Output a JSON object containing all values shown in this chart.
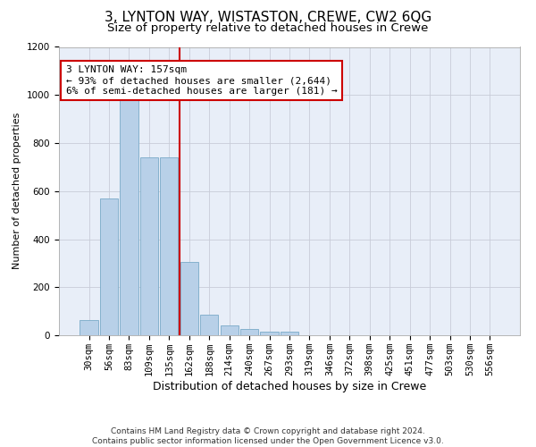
{
  "title": "3, LYNTON WAY, WISTASTON, CREWE, CW2 6QG",
  "subtitle": "Size of property relative to detached houses in Crewe",
  "xlabel": "Distribution of detached houses by size in Crewe",
  "ylabel": "Number of detached properties",
  "bar_color": "#b8d0e8",
  "bar_edge_color": "#7aaac8",
  "background_color": "#e8eef8",
  "grid_color": "#c8ccd8",
  "bins": [
    "30sqm",
    "56sqm",
    "83sqm",
    "109sqm",
    "135sqm",
    "162sqm",
    "188sqm",
    "214sqm",
    "240sqm",
    "267sqm",
    "293sqm",
    "319sqm",
    "346sqm",
    "372sqm",
    "398sqm",
    "425sqm",
    "451sqm",
    "477sqm",
    "503sqm",
    "530sqm",
    "556sqm"
  ],
  "values": [
    65,
    570,
    1000,
    740,
    740,
    305,
    85,
    40,
    25,
    15,
    15,
    0,
    0,
    0,
    0,
    0,
    0,
    0,
    0,
    0,
    0
  ],
  "property_bin_index": 5,
  "red_line_color": "#cc0000",
  "annotation_line1": "3 LYNTON WAY: 157sqm",
  "annotation_line2": "← 93% of detached houses are smaller (2,644)",
  "annotation_line3": "6% of semi-detached houses are larger (181) →",
  "annotation_box_color": "#cc0000",
  "ylim": [
    0,
    1200
  ],
  "yticks": [
    0,
    200,
    400,
    600,
    800,
    1000,
    1200
  ],
  "footer_line1": "Contains HM Land Registry data © Crown copyright and database right 2024.",
  "footer_line2": "Contains public sector information licensed under the Open Government Licence v3.0.",
  "title_fontsize": 11,
  "subtitle_fontsize": 9.5,
  "xlabel_fontsize": 9,
  "ylabel_fontsize": 8,
  "tick_fontsize": 7.5,
  "annotation_fontsize": 8,
  "footer_fontsize": 6.5
}
